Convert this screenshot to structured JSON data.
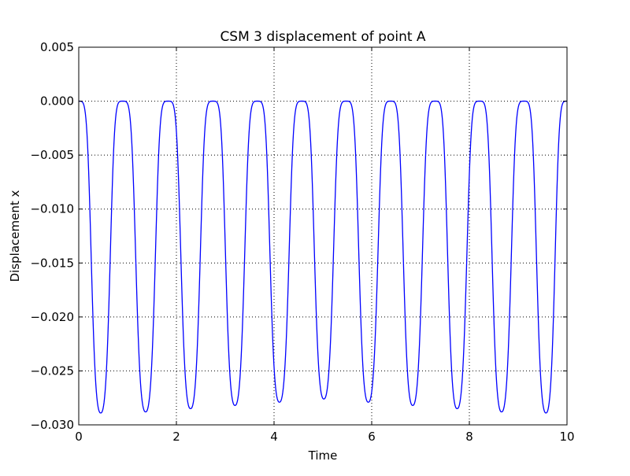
{
  "chart_data": {
    "type": "line",
    "title": "CSM 3 displacement of point A",
    "xlabel": "Time",
    "ylabel": "Displacement x",
    "xlim": [
      0,
      10
    ],
    "ylim": [
      -0.03,
      0.005
    ],
    "xticks": [
      0,
      2,
      4,
      6,
      8,
      10
    ],
    "xtick_labels": [
      "0",
      "2",
      "4",
      "6",
      "8",
      "10"
    ],
    "yticks": [
      0.005,
      0.0,
      -0.005,
      -0.01,
      -0.015,
      -0.02,
      -0.025,
      -0.03
    ],
    "ytick_labels": [
      "0.005",
      "0.000",
      "−0.005",
      "−0.010",
      "−0.015",
      "−0.020",
      "−0.025",
      "−0.030"
    ],
    "grid": true,
    "series": [
      {
        "color": "#0000ff",
        "x": [
          0.0,
          0.45,
          0.9,
          1.37,
          1.83,
          2.29,
          2.75,
          3.2,
          3.66,
          4.11,
          4.57,
          5.02,
          5.48,
          5.93,
          6.39,
          6.84,
          7.3,
          7.75,
          8.21,
          8.66,
          9.12,
          9.57,
          10.0
        ],
        "y": [
          0.0,
          -0.0289,
          0.0,
          -0.0288,
          0.0,
          -0.0285,
          0.0,
          -0.0282,
          0.0,
          -0.0279,
          0.0,
          -0.0276,
          0.0,
          -0.0279,
          0.0,
          -0.0282,
          0.0,
          -0.0285,
          0.0,
          -0.0288,
          0.0,
          -0.0289,
          0.0
        ]
      }
    ]
  }
}
